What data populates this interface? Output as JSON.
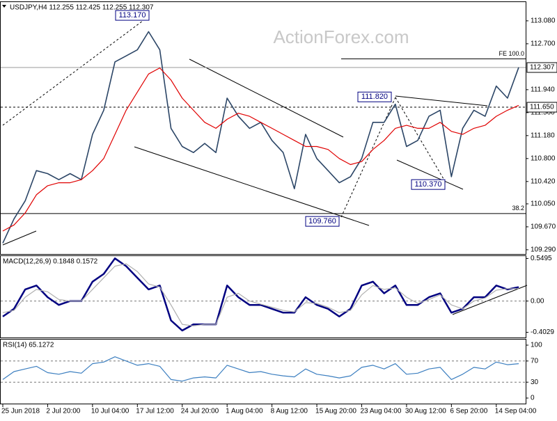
{
  "chart_data": [
    {
      "type": "line",
      "title": "USDJPY,H4  112.255 112.425 112.255 112.307",
      "watermark": "ActionForex.com",
      "ylim": [
        109.22,
        113.39
      ],
      "yticks": [
        {
          "value": 113.08,
          "label": "113.080"
        },
        {
          "value": 112.7,
          "label": "112.700"
        },
        {
          "value": 111.94,
          "label": "111.940"
        },
        {
          "value": 111.56,
          "label": "111.560"
        },
        {
          "value": 111.18,
          "label": "111.180"
        },
        {
          "value": 110.8,
          "label": "110.800"
        },
        {
          "value": 110.42,
          "label": "110.420"
        },
        {
          "value": 110.05,
          "label": "110.050"
        },
        {
          "value": 109.67,
          "label": "109.670"
        },
        {
          "value": 109.29,
          "label": "109.290"
        }
      ],
      "current_price": 112.307,
      "level": {
        "value": 111.65,
        "label": "111.650"
      },
      "fe_line": {
        "value": 112.45,
        "label": "FE 100.0"
      },
      "fib_line": {
        "value": 109.89,
        "label": "38.2"
      },
      "annotations": [
        {
          "value": 113.17,
          "label": "113.170"
        },
        {
          "value": 111.82,
          "label": "111.820"
        },
        {
          "value": 110.37,
          "label": "110.370"
        },
        {
          "value": 109.76,
          "label": "109.760"
        }
      ],
      "series": [
        {
          "color": "#2b4566",
          "values": [
            109.4,
            109.8,
            110.1,
            110.6,
            110.55,
            110.45,
            110.55,
            110.45,
            111.2,
            111.6,
            112.4,
            112.5,
            112.6,
            112.9,
            112.6,
            111.3,
            111.0,
            110.9,
            111.05,
            110.9,
            111.8,
            111.5,
            111.3,
            111.4,
            111.1,
            110.9,
            110.3,
            111.2,
            110.8,
            110.6,
            110.4,
            110.5,
            110.8,
            111.4,
            111.4,
            111.7,
            111.0,
            111.1,
            111.5,
            111.6,
            110.5,
            111.3,
            111.6,
            111.5,
            112.0,
            111.8,
            112.31
          ]
        },
        {
          "color": "#e00000",
          "values": [
            109.6,
            109.7,
            109.9,
            110.2,
            110.35,
            110.4,
            110.4,
            110.45,
            110.6,
            110.8,
            111.2,
            111.6,
            111.9,
            112.2,
            112.3,
            112.1,
            111.8,
            111.6,
            111.4,
            111.3,
            111.45,
            111.55,
            111.5,
            111.4,
            111.3,
            111.2,
            111.1,
            111.0,
            111.0,
            110.95,
            110.8,
            110.7,
            110.75,
            110.95,
            111.1,
            111.3,
            111.35,
            111.3,
            111.3,
            111.4,
            111.25,
            111.2,
            111.3,
            111.35,
            111.5,
            111.6,
            111.68
          ]
        }
      ]
    },
    {
      "type": "line",
      "title": "MACD(12,26,9) 0.1848 0.1572",
      "ylim": [
        -0.47,
        0.58
      ],
      "yticks": [
        0.5495,
        {
          "value": 0,
          "label": "0.00"
        },
        -0.4029
      ],
      "levels": [
        0
      ],
      "series": [
        {
          "color": "#000080",
          "values": [
            -0.2,
            -0.1,
            0.15,
            0.2,
            0.05,
            -0.05,
            0.0,
            0.0,
            0.25,
            0.35,
            0.55,
            0.45,
            0.3,
            0.15,
            0.2,
            -0.25,
            -0.38,
            -0.3,
            -0.3,
            -0.3,
            0.2,
            0.05,
            -0.05,
            -0.05,
            -0.1,
            -0.15,
            -0.15,
            0.05,
            -0.05,
            -0.1,
            -0.2,
            -0.1,
            0.2,
            0.25,
            0.1,
            0.2,
            -0.05,
            -0.05,
            0.05,
            0.1,
            -0.15,
            -0.1,
            0.05,
            0.05,
            0.2,
            0.15,
            0.18
          ]
        },
        {
          "color": "#b0b0b0",
          "values": [
            -0.15,
            -0.12,
            0.05,
            0.15,
            0.12,
            0.02,
            0,
            0,
            0.15,
            0.3,
            0.45,
            0.48,
            0.38,
            0.22,
            0.18,
            -0.05,
            -0.3,
            -0.32,
            -0.3,
            -0.3,
            0.05,
            0.1,
            0,
            -0.04,
            -0.08,
            -0.12,
            -0.14,
            -0.02,
            -0.03,
            -0.08,
            -0.15,
            -0.12,
            0.08,
            0.2,
            0.15,
            0.17,
            0.05,
            -0.03,
            0.02,
            0.08,
            -0.05,
            -0.1,
            0.0,
            0.04,
            0.14,
            0.16,
            0.16
          ]
        }
      ]
    },
    {
      "type": "line",
      "title": "RSI(14) 65.1272",
      "ylim": [
        -10.5,
        110.5
      ],
      "yticks": [
        100,
        70,
        30,
        0
      ],
      "levels": [
        70,
        30
      ],
      "categories": [
        "25 Jun 2018",
        null,
        null,
        null,
        "2 Jul 20:00",
        null,
        null,
        null,
        "10 Jul 04:00",
        null,
        null,
        null,
        "17 Jul 12:00",
        null,
        null,
        null,
        "24 Jul 20:00",
        null,
        null,
        null,
        "1 Aug 04:00",
        null,
        null,
        null,
        "8 Aug 12:00",
        null,
        null,
        null,
        "15 Aug 20:00",
        null,
        null,
        null,
        "23 Aug 04:00",
        null,
        null,
        null,
        "30 Aug 12:00",
        null,
        null,
        null,
        "6 Sep 20:00",
        null,
        null,
        null,
        "14 Sep 04:00",
        null,
        null
      ],
      "series": [
        {
          "color": "#3c7fc0",
          "values": [
            35,
            50,
            55,
            60,
            48,
            45,
            50,
            47,
            65,
            68,
            78,
            70,
            62,
            65,
            60,
            35,
            32,
            38,
            40,
            38,
            62,
            55,
            48,
            50,
            45,
            42,
            40,
            55,
            45,
            42,
            38,
            42,
            58,
            62,
            55,
            65,
            45,
            47,
            55,
            58,
            35,
            45,
            58,
            55,
            68,
            63,
            65
          ]
        }
      ]
    }
  ]
}
